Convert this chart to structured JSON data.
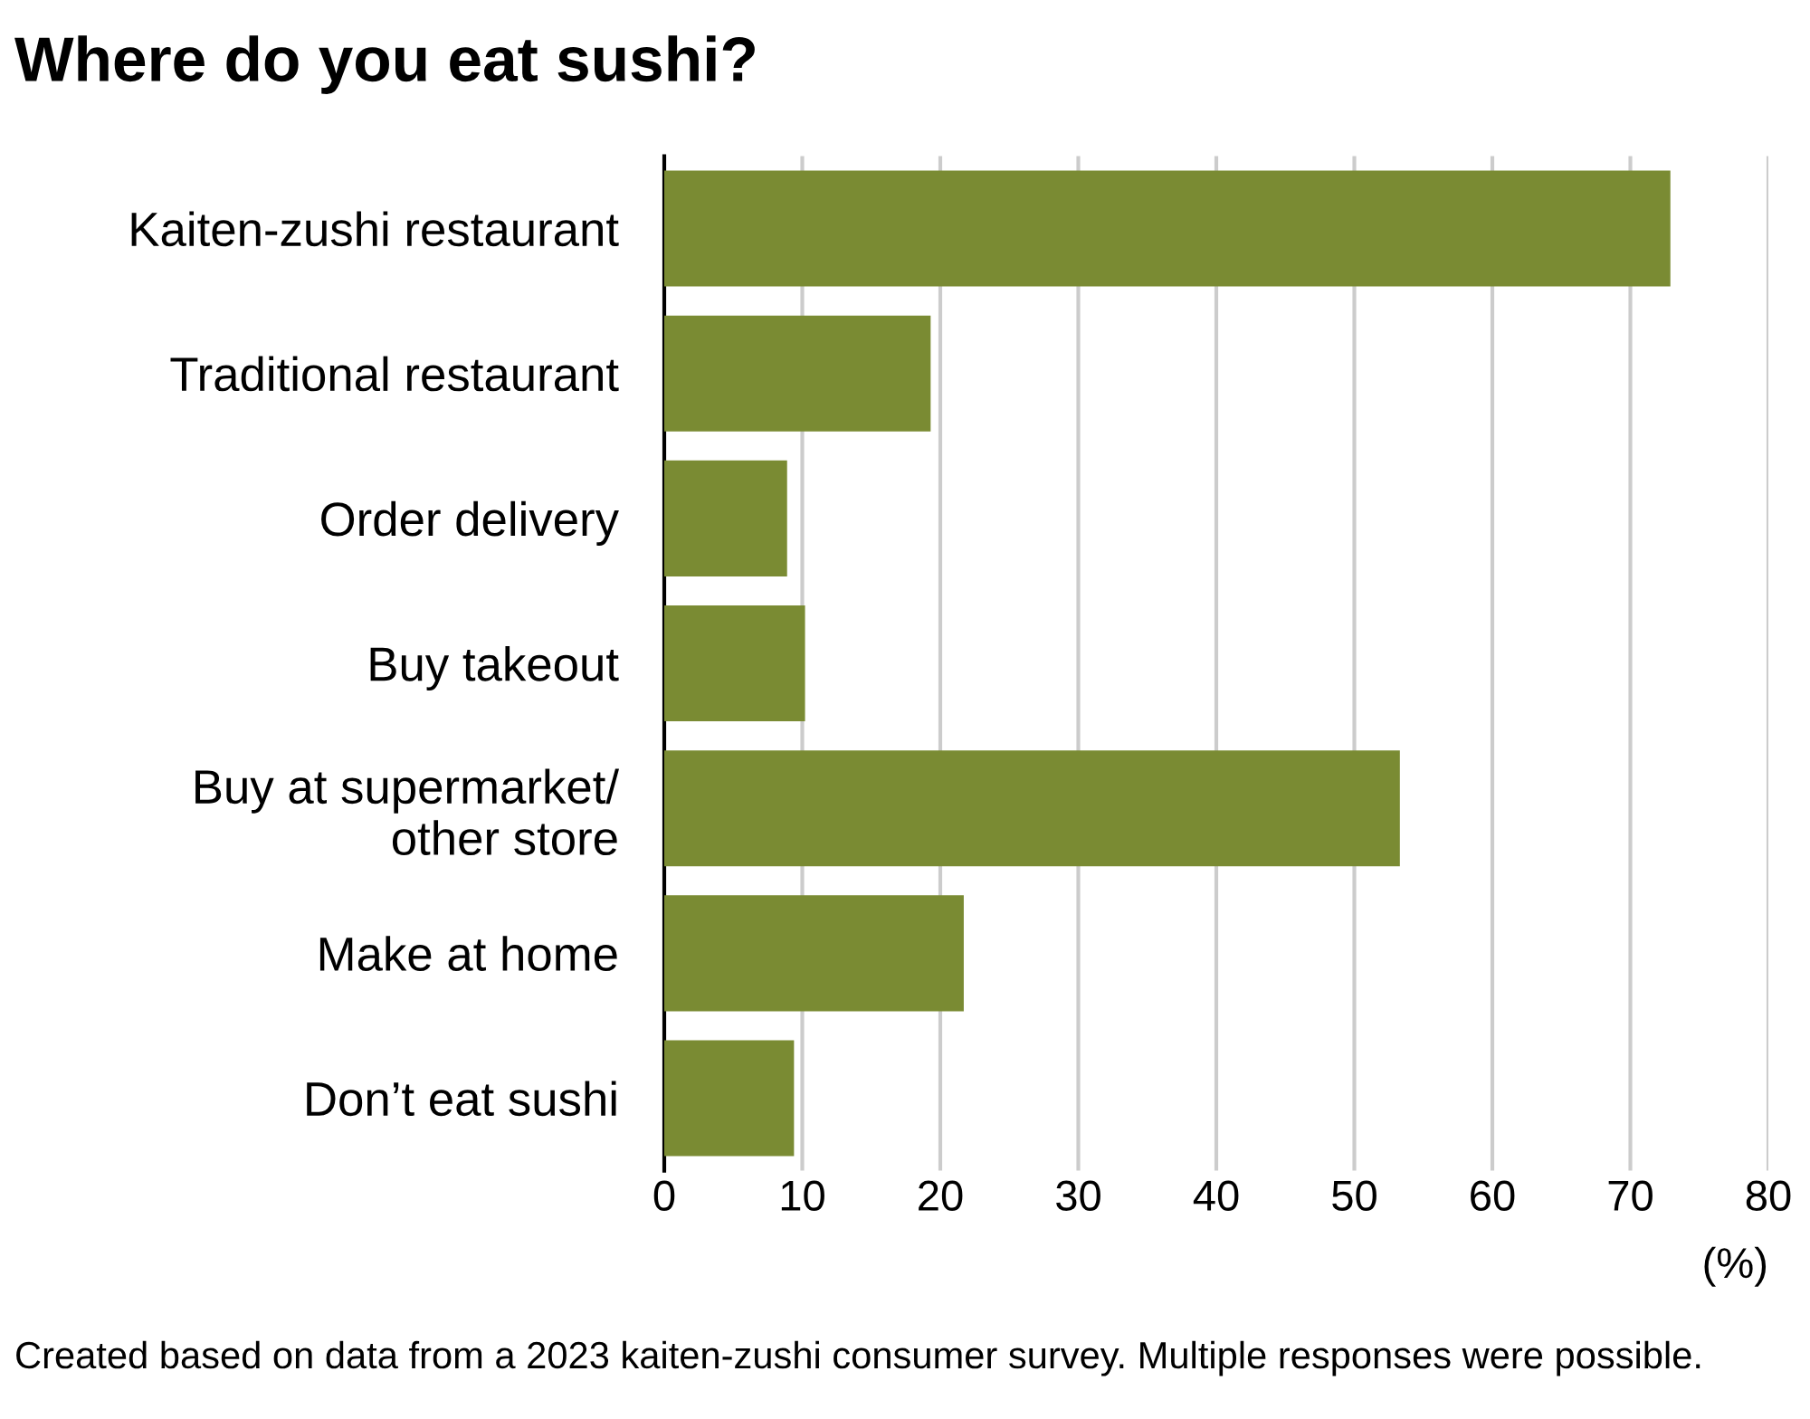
{
  "chart_data": {
    "type": "bar",
    "orientation": "horizontal",
    "title": "Where do you eat sushi?",
    "categories": [
      "Kaiten-zushi restaurant",
      "Traditional restaurant",
      "Order delivery",
      "Buy takeout",
      "Buy at supermarket/\nother store",
      "Make at home",
      "Don’t eat sushi"
    ],
    "values": [
      72.9,
      19.3,
      8.9,
      10.2,
      53.3,
      21.7,
      9.4
    ],
    "color": "#7a8b33",
    "xlim": [
      0,
      80
    ],
    "xticks": [
      0,
      10,
      20,
      30,
      40,
      50,
      60,
      70,
      80
    ],
    "xlabel": "(%)",
    "grid": "x",
    "annotations": [
      "Created based on data from a 2023 kaiten-zushi consumer survey. Multiple responses were possible."
    ]
  }
}
